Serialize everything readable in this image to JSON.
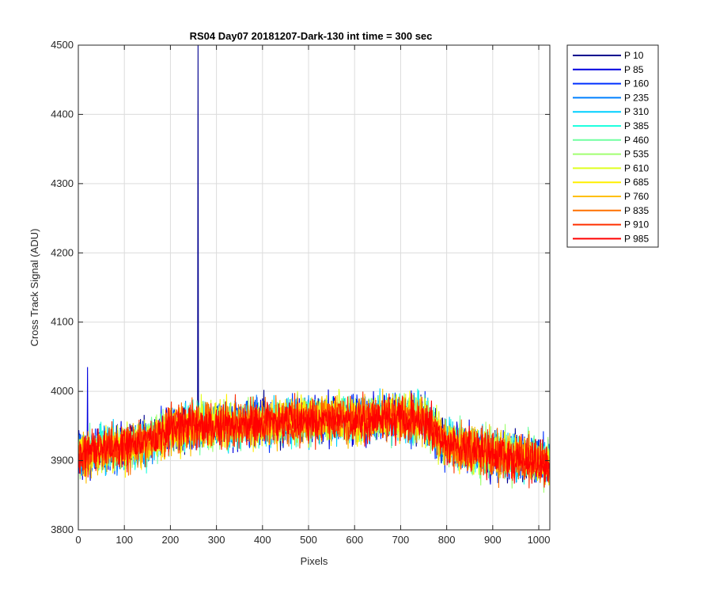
{
  "chart_data": {
    "type": "line",
    "title": "RS04 Day07 20181207-Dark-130 int time = 300 sec",
    "xlabel": "Pixels",
    "ylabel": "Cross Track Signal (ADU)",
    "xlim": [
      0,
      1024
    ],
    "ylim": [
      3800,
      4500
    ],
    "xticks": [
      0,
      100,
      200,
      300,
      400,
      500,
      600,
      700,
      800,
      900,
      1000
    ],
    "yticks": [
      3800,
      3900,
      4000,
      4100,
      4200,
      4300,
      4400,
      4500
    ],
    "xtick_labels": [
      "0",
      "100",
      "200",
      "300",
      "400",
      "500",
      "600",
      "700",
      "800",
      "900",
      "1000"
    ],
    "ytick_labels": [
      "3800",
      "3900",
      "4000",
      "4100",
      "4200",
      "4300",
      "4400",
      "4500"
    ],
    "grid": true,
    "legend_position": "outside-top-right",
    "x_points": 1024,
    "baseline_profile": {
      "x": [
        0,
        50,
        100,
        150,
        200,
        250,
        300,
        350,
        400,
        450,
        500,
        550,
        600,
        650,
        700,
        750,
        780,
        800,
        850,
        900,
        950,
        1000,
        1024
      ],
      "y": [
        3905,
        3915,
        3920,
        3925,
        3945,
        3950,
        3950,
        3952,
        3955,
        3955,
        3958,
        3960,
        3960,
        3962,
        3962,
        3960,
        3935,
        3925,
        3915,
        3910,
        3905,
        3900,
        3895
      ]
    },
    "noise_amplitude_adu": 40,
    "spikes": [
      {
        "series": "P 10",
        "x": 260,
        "y": 4500
      },
      {
        "series": "P 85",
        "x": 20,
        "y": 4035
      }
    ],
    "series": [
      {
        "name": "P 10",
        "color": "#00008f"
      },
      {
        "name": "P 85",
        "color": "#0000df"
      },
      {
        "name": "P 160",
        "color": "#0030ff"
      },
      {
        "name": "P 235",
        "color": "#0080ff"
      },
      {
        "name": "P 310",
        "color": "#00cfff"
      },
      {
        "name": "P 385",
        "color": "#20ffdf"
      },
      {
        "name": "P 460",
        "color": "#70ffa0"
      },
      {
        "name": "P 535",
        "color": "#a0ff70"
      },
      {
        "name": "P 610",
        "color": "#dfff20"
      },
      {
        "name": "P 685",
        "color": "#ffef00"
      },
      {
        "name": "P 760",
        "color": "#ffbf00"
      },
      {
        "name": "P 835",
        "color": "#ff7000"
      },
      {
        "name": "P 910",
        "color": "#ff3000"
      },
      {
        "name": "P 985",
        "color": "#ff0000"
      }
    ]
  }
}
